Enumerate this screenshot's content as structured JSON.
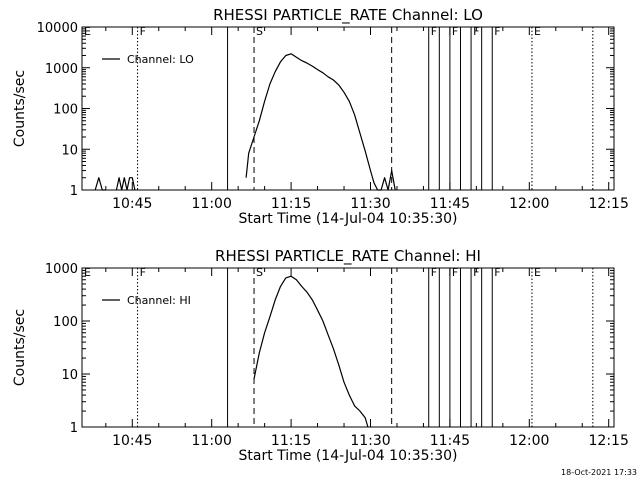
{
  "footer": {
    "timestamp": "18-Oct-2021 17:33"
  },
  "chart_data": [
    {
      "type": "line",
      "title": "RHESSI PARTICLE_RATE Channel: LO",
      "xlabel": "Start Time (14-Jul-04 10:35:30)",
      "ylabel": "Counts/sec",
      "yscale": "log",
      "ylim": [
        1,
        10000
      ],
      "y_ticks": [
        1,
        10,
        100,
        1000,
        10000
      ],
      "y_tick_labels": [
        "1",
        "10",
        "100",
        "1000",
        "10000"
      ],
      "xlim": [
        "10:35:30",
        "12:16:00"
      ],
      "x_ticks": [
        "10:45",
        "11:00",
        "11:15",
        "11:30",
        "11:45",
        "12:00",
        "12:15"
      ],
      "legend": {
        "position": "top-left",
        "entries": [
          "Channel: LO"
        ]
      },
      "markers": [
        {
          "time": "10:35:30",
          "style": "solid",
          "label": "E"
        },
        {
          "time": "10:46",
          "style": "dotted",
          "label": "F"
        },
        {
          "time": "11:03",
          "style": "solid",
          "label": ""
        },
        {
          "time": "11:08",
          "style": "dashed",
          "label": "S"
        },
        {
          "time": "11:34",
          "style": "dashed",
          "label": ""
        },
        {
          "time": "11:41",
          "style": "solid",
          "label": "F"
        },
        {
          "time": "11:43",
          "style": "solid",
          "label": ""
        },
        {
          "time": "11:45",
          "style": "solid",
          "label": "F"
        },
        {
          "time": "11:47",
          "style": "solid",
          "label": ""
        },
        {
          "time": "11:49",
          "style": "solid",
          "label": "F"
        },
        {
          "time": "11:51",
          "style": "solid",
          "label": ""
        },
        {
          "time": "11:53",
          "style": "solid",
          "label": "F"
        },
        {
          "time": "12:00:30",
          "style": "dotted",
          "label": "E"
        },
        {
          "time": "12:12",
          "style": "dotted",
          "label": ""
        }
      ],
      "series": [
        {
          "name": "Channel: LO",
          "segments": [
            {
              "x": [
                "10:38",
                "10:38:40",
                "10:39:20",
                "10:40"
              ],
              "y": [
                1,
                2,
                1,
                1
              ]
            },
            {
              "x": [
                "10:42",
                "10:42:30",
                "10:43",
                "10:43:30",
                "10:44",
                "10:44:30",
                "10:45",
                "10:45:30"
              ],
              "y": [
                1,
                2,
                1,
                2,
                1,
                2,
                2,
                1
              ]
            },
            {
              "x": [
                "11:06:30",
                "11:07",
                "11:08",
                "11:09",
                "11:10",
                "11:11",
                "11:12",
                "11:13",
                "11:14",
                "11:15",
                "11:16",
                "11:17",
                "11:18",
                "11:19",
                "11:20",
                "11:21",
                "11:22",
                "11:23",
                "11:24",
                "11:25",
                "11:26",
                "11:27",
                "11:28",
                "11:29",
                "11:30",
                "11:30:40",
                "11:31:20",
                "11:32"
              ],
              "y": [
                2,
                8,
                20,
                50,
                150,
                400,
                800,
                1400,
                2000,
                2200,
                1800,
                1500,
                1300,
                1100,
                900,
                750,
                600,
                500,
                380,
                250,
                150,
                70,
                25,
                9,
                3,
                1.5,
                1,
                1
              ]
            },
            {
              "x": [
                "11:32",
                "11:32:40",
                "11:33:20",
                "11:34",
                "11:34:40"
              ],
              "y": [
                1,
                2,
                1,
                3,
                1
              ]
            }
          ]
        }
      ]
    },
    {
      "type": "line",
      "title": "RHESSI PARTICLE_RATE Channel: HI",
      "xlabel": "Start Time (14-Jul-04 10:35:30)",
      "ylabel": "Counts/sec",
      "yscale": "log",
      "ylim": [
        1,
        1000
      ],
      "y_ticks": [
        1,
        10,
        100,
        1000
      ],
      "y_tick_labels": [
        "1",
        "10",
        "100",
        "1000"
      ],
      "xlim": [
        "10:35:30",
        "12:16:00"
      ],
      "x_ticks": [
        "10:45",
        "11:00",
        "11:15",
        "11:30",
        "11:45",
        "12:00",
        "12:15"
      ],
      "legend": {
        "position": "top-left",
        "entries": [
          "Channel: HI"
        ]
      },
      "markers": [
        {
          "time": "10:35:30",
          "style": "solid",
          "label": "E"
        },
        {
          "time": "10:46",
          "style": "dotted",
          "label": "F"
        },
        {
          "time": "11:03",
          "style": "solid",
          "label": ""
        },
        {
          "time": "11:08",
          "style": "dashed",
          "label": "S"
        },
        {
          "time": "11:34",
          "style": "dashed",
          "label": ""
        },
        {
          "time": "11:41",
          "style": "solid",
          "label": "F"
        },
        {
          "time": "11:43",
          "style": "solid",
          "label": ""
        },
        {
          "time": "11:45",
          "style": "solid",
          "label": "F"
        },
        {
          "time": "11:47",
          "style": "solid",
          "label": ""
        },
        {
          "time": "11:49",
          "style": "solid",
          "label": "F"
        },
        {
          "time": "11:51",
          "style": "solid",
          "label": ""
        },
        {
          "time": "11:53",
          "style": "solid",
          "label": "F"
        },
        {
          "time": "12:00:30",
          "style": "dotted",
          "label": "E"
        },
        {
          "time": "12:12",
          "style": "dotted",
          "label": ""
        }
      ],
      "series": [
        {
          "name": "Channel: HI",
          "segments": [
            {
              "x": [
                "11:08",
                "11:09",
                "11:10",
                "11:11",
                "11:12",
                "11:13",
                "11:14",
                "11:15",
                "11:16",
                "11:17",
                "11:18",
                "11:19",
                "11:20",
                "11:21",
                "11:22",
                "11:23",
                "11:24",
                "11:25",
                "11:26",
                "11:27",
                "11:28",
                "11:29",
                "11:29:30"
              ],
              "y": [
                8,
                25,
                60,
                120,
                250,
                450,
                650,
                700,
                600,
                450,
                350,
                250,
                160,
                100,
                55,
                30,
                15,
                7,
                4,
                2.5,
                2,
                1.5,
                1
              ]
            }
          ]
        }
      ]
    }
  ]
}
